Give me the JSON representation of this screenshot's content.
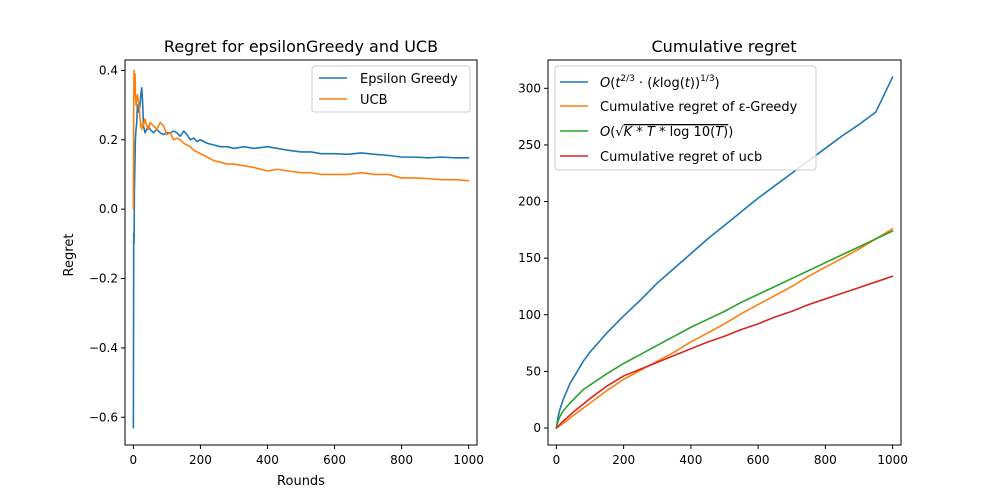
{
  "chart_data": [
    {
      "type": "line",
      "title": "Regret for epsilonGreedy and UCB",
      "xlabel": "Rounds",
      "ylabel": "Regret",
      "xlim": [
        -25,
        1025
      ],
      "ylim": [
        -0.68,
        0.43
      ],
      "xticks": [
        0,
        200,
        400,
        600,
        800,
        1000
      ],
      "yticks": [
        -0.6,
        -0.4,
        -0.2,
        0.0,
        0.2,
        0.4
      ],
      "ytick_labels": [
        "−0.6",
        "−0.4",
        "−0.2",
        "0.0",
        "0.2",
        "0.4"
      ],
      "grid": false,
      "legend": "upper right",
      "series": [
        {
          "name": "Epsilon Greedy",
          "color": "#1f77b4",
          "x": [
            0,
            1,
            2,
            3,
            4,
            5,
            6,
            8,
            10,
            12,
            15,
            18,
            20,
            22,
            25,
            28,
            30,
            35,
            40,
            45,
            50,
            60,
            70,
            80,
            90,
            100,
            110,
            120,
            130,
            140,
            150,
            160,
            170,
            180,
            190,
            200,
            220,
            240,
            260,
            280,
            300,
            330,
            360,
            400,
            430,
            460,
            500,
            530,
            560,
            600,
            640,
            680,
            720,
            760,
            800,
            840,
            880,
            920,
            960,
            1000
          ],
          "y": [
            -0.63,
            -0.07,
            -0.1,
            0.05,
            0.1,
            0.15,
            0.2,
            0.23,
            0.25,
            0.3,
            0.28,
            0.29,
            0.3,
            0.33,
            0.35,
            0.3,
            0.24,
            0.22,
            0.23,
            0.24,
            0.23,
            0.22,
            0.23,
            0.22,
            0.215,
            0.22,
            0.22,
            0.225,
            0.22,
            0.21,
            0.225,
            0.215,
            0.2,
            0.205,
            0.195,
            0.2,
            0.19,
            0.185,
            0.18,
            0.18,
            0.175,
            0.18,
            0.175,
            0.18,
            0.175,
            0.17,
            0.165,
            0.165,
            0.16,
            0.16,
            0.158,
            0.162,
            0.158,
            0.155,
            0.15,
            0.15,
            0.148,
            0.15,
            0.148,
            0.148
          ]
        },
        {
          "name": "UCB",
          "color": "#ff7f0e",
          "x": [
            0,
            1,
            2,
            3,
            4,
            5,
            6,
            8,
            10,
            12,
            15,
            18,
            20,
            22,
            25,
            28,
            30,
            35,
            40,
            45,
            50,
            60,
            70,
            80,
            90,
            100,
            110,
            120,
            130,
            140,
            150,
            160,
            170,
            180,
            190,
            200,
            220,
            240,
            260,
            280,
            300,
            330,
            360,
            400,
            430,
            460,
            500,
            530,
            560,
            600,
            640,
            680,
            720,
            760,
            800,
            840,
            880,
            920,
            960,
            1000
          ],
          "y": [
            0.0,
            0.3,
            0.4,
            0.38,
            0.35,
            0.39,
            0.33,
            0.3,
            0.32,
            0.33,
            0.31,
            0.29,
            0.26,
            0.24,
            0.23,
            0.25,
            0.24,
            0.26,
            0.24,
            0.23,
            0.25,
            0.24,
            0.23,
            0.25,
            0.24,
            0.215,
            0.22,
            0.2,
            0.205,
            0.2,
            0.19,
            0.185,
            0.18,
            0.17,
            0.165,
            0.16,
            0.15,
            0.14,
            0.135,
            0.13,
            0.13,
            0.125,
            0.12,
            0.11,
            0.115,
            0.11,
            0.105,
            0.105,
            0.1,
            0.1,
            0.1,
            0.105,
            0.1,
            0.1,
            0.09,
            0.09,
            0.088,
            0.085,
            0.085,
            0.082
          ]
        }
      ]
    },
    {
      "type": "line",
      "title": "Cumulative regret",
      "xlabel": "",
      "ylabel": "",
      "xlim": [
        -25,
        1025
      ],
      "ylim": [
        -15,
        325
      ],
      "xticks": [
        0,
        200,
        400,
        600,
        800,
        1000
      ],
      "yticks": [
        0,
        50,
        100,
        150,
        200,
        250,
        300
      ],
      "grid": false,
      "legend": "upper left",
      "series": [
        {
          "name": "O(t^{2/3} · (k log(t))^{1/3})",
          "color": "#1f77b4",
          "x": [
            0,
            5,
            10,
            20,
            40,
            60,
            80,
            100,
            150,
            200,
            250,
            300,
            350,
            400,
            450,
            500,
            550,
            600,
            650,
            700,
            750,
            800,
            850,
            900,
            950,
            1000
          ],
          "y": [
            0,
            10,
            16,
            25,
            39,
            49,
            59,
            67,
            84,
            99,
            113,
            128,
            141,
            154,
            167,
            179,
            191,
            203,
            214,
            225,
            236,
            247,
            258,
            268,
            279,
            310
          ]
        },
        {
          "name": "Cumulative regret of ε-Greedy",
          "color": "#ff7f0e",
          "x": [
            0,
            10,
            20,
            50,
            100,
            150,
            200,
            250,
            300,
            350,
            400,
            450,
            500,
            550,
            600,
            650,
            700,
            750,
            800,
            850,
            900,
            950,
            1000
          ],
          "y": [
            0,
            2,
            4,
            11,
            22,
            33,
            43,
            51,
            59,
            67,
            76,
            84,
            92,
            101,
            109,
            117,
            125,
            134,
            142,
            150,
            158,
            167,
            176
          ]
        },
        {
          "name": "O(√(K*T*log10(T)))",
          "color": "#2ca02c",
          "x": [
            0,
            2,
            5,
            10,
            20,
            40,
            60,
            80,
            100,
            150,
            200,
            250,
            300,
            350,
            400,
            450,
            500,
            550,
            600,
            650,
            700,
            750,
            800,
            850,
            900,
            950,
            1000
          ],
          "y": [
            0,
            3,
            6,
            10,
            15,
            22,
            28,
            34,
            38,
            48,
            57,
            65,
            73,
            81,
            89,
            96,
            103,
            111,
            118,
            125,
            132,
            139,
            146,
            153,
            160,
            167,
            174
          ]
        },
        {
          "name": "Cumulative regret of ucb",
          "color": "#d62728",
          "x": [
            0,
            10,
            20,
            50,
            100,
            150,
            200,
            250,
            300,
            350,
            400,
            450,
            500,
            550,
            600,
            650,
            700,
            750,
            800,
            850,
            900,
            950,
            1000
          ],
          "y": [
            0,
            3,
            6,
            14,
            26,
            37,
            46,
            52,
            58,
            64,
            70,
            76,
            81,
            87,
            92,
            98,
            103,
            109,
            114,
            119,
            124,
            129,
            134
          ]
        }
      ]
    }
  ]
}
